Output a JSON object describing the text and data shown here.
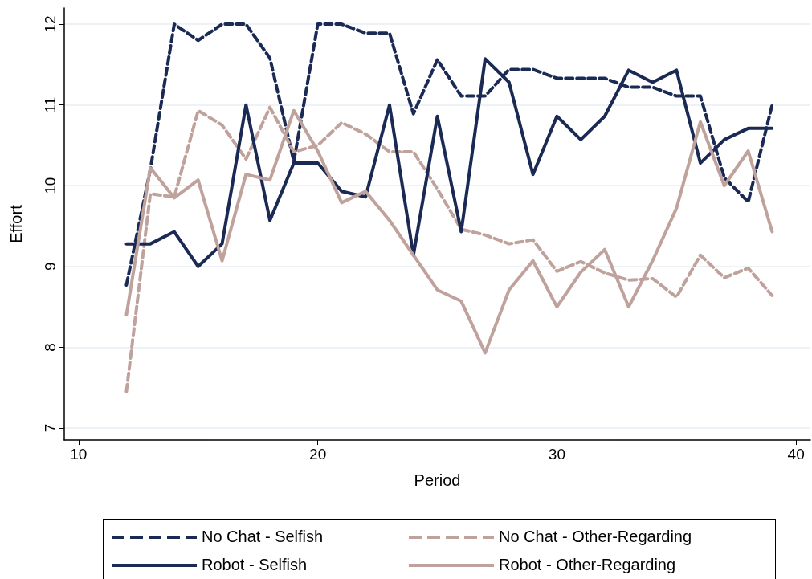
{
  "chart_data": {
    "type": "line",
    "xlabel": "Period",
    "ylabel": "Effort",
    "x": [
      12,
      13,
      14,
      15,
      16,
      17,
      18,
      19,
      20,
      21,
      22,
      23,
      24,
      25,
      26,
      27,
      28,
      29,
      30,
      31,
      32,
      33,
      34,
      35,
      36,
      37,
      38,
      39
    ],
    "series": [
      {
        "name": "No Chat - Selfish",
        "color": "#1a2a55",
        "line_style": "dashed",
        "values": [
          8.77,
          10.2,
          12.0,
          11.8,
          12.0,
          12.0,
          11.58,
          10.3,
          12.0,
          12.0,
          11.89,
          11.89,
          10.89,
          11.56,
          11.11,
          11.11,
          11.44,
          11.44,
          11.33,
          11.33,
          11.33,
          11.22,
          11.22,
          11.11,
          11.11,
          10.1,
          9.8,
          11.0
        ]
      },
      {
        "name": "No Chat - Other-Regarding",
        "color": "#c0a29c",
        "line_style": "dashed",
        "values": [
          7.45,
          9.9,
          9.86,
          10.93,
          10.75,
          10.33,
          10.97,
          10.42,
          10.5,
          10.78,
          10.64,
          10.42,
          10.42,
          9.96,
          9.46,
          9.39,
          9.28,
          9.33,
          8.94,
          9.06,
          8.92,
          8.83,
          8.85,
          8.62,
          9.14,
          8.86,
          8.98,
          8.64
        ]
      },
      {
        "name": "Robot - Selfish",
        "color": "#1a2a55",
        "line_style": "solid",
        "values": [
          9.28,
          9.28,
          9.43,
          9.0,
          9.28,
          11.0,
          9.57,
          10.28,
          10.28,
          9.93,
          9.86,
          11.0,
          9.14,
          10.86,
          9.43,
          11.57,
          11.28,
          10.14,
          10.86,
          10.57,
          10.86,
          11.43,
          11.28,
          11.43,
          10.28,
          10.57,
          10.71,
          10.71
        ]
      },
      {
        "name": "Robot - Other-Regarding",
        "color": "#c0a29c",
        "line_style": "solid",
        "values": [
          8.4,
          10.22,
          9.85,
          10.07,
          9.07,
          10.14,
          10.07,
          10.93,
          10.43,
          9.79,
          9.93,
          9.57,
          9.14,
          8.71,
          8.57,
          7.93,
          8.71,
          9.07,
          8.5,
          8.93,
          9.21,
          8.5,
          9.07,
          9.72,
          10.79,
          10.0,
          10.43,
          9.43
        ]
      }
    ],
    "xlim": [
      9.4,
      40.6
    ],
    "xticks": [
      10,
      20,
      30,
      40
    ],
    "ylim": [
      6.85,
      12.2
    ],
    "yticks": [
      7,
      8,
      9,
      10,
      11,
      12
    ],
    "grid": "y",
    "legend": "bottom",
    "marker": "none"
  }
}
